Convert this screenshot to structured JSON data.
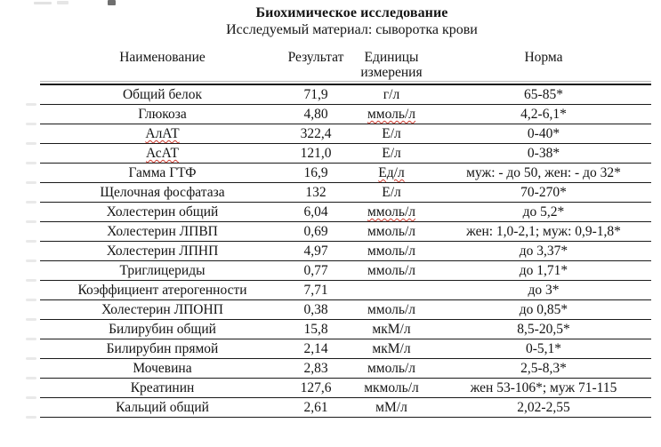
{
  "title": "Биохимическое исследование",
  "subtitle": "Исследуемый материал: сыворотка крови",
  "colors": {
    "spellcheck_underline": "#cc3b2f",
    "rule_dark": "#1a1a1a"
  },
  "table": {
    "columns": [
      "Наименование",
      "Результат",
      "Единицы измерения",
      "Норма"
    ],
    "rows": [
      {
        "name": "Общий белок",
        "result": "71,9",
        "units": "г/л",
        "norm": "65-85*"
      },
      {
        "name": "Глюкоза",
        "result": "4,80",
        "units": "ммоль/л",
        "norm": "4,2-6,1*",
        "units_misspelled": true
      },
      {
        "name": "АлАТ",
        "result": "322,4",
        "units": "Е/л",
        "norm": "0-40*",
        "name_misspelled": true
      },
      {
        "name": "АсАТ",
        "result": "121,0",
        "units": "Е/л",
        "norm": "0-38*",
        "name_misspelled": true
      },
      {
        "name": "Гамма ГТФ",
        "result": "16,9",
        "units": "Ед/л",
        "norm": "муж: - до 50, жен: - до 32*",
        "units_misspelled": true
      },
      {
        "name": "Щелочная фосфатаза",
        "result": "132",
        "units": "Е/л",
        "norm": "70-270*"
      },
      {
        "name": "Холестерин общий",
        "result": "6,04",
        "units": "ммоль/л",
        "norm": "до 5,2*",
        "units_misspelled": true
      },
      {
        "name": "Холестерин ЛПВП",
        "result": "0,69",
        "units": "ммоль/л",
        "norm": "жен: 1,0-2,1; муж: 0,9-1,8*"
      },
      {
        "name": "Холестерин ЛПНП",
        "result": "4,97",
        "units": "ммоль/л",
        "norm": "до 3,37*"
      },
      {
        "name": "Триглицериды",
        "result": "0,77",
        "units": "ммоль/л",
        "norm": "до 1,71*"
      },
      {
        "name": "Коэффициент атерогенности",
        "result": "7,71",
        "units": "",
        "norm": "до 3*"
      },
      {
        "name": "Холестерин ЛПОНП",
        "result": "0,38",
        "units": "ммоль/л",
        "norm": "до 0,85*"
      },
      {
        "name": "Билирубин общий",
        "result": "15,8",
        "units": "мкМ/л",
        "norm": "8,5-20,5*"
      },
      {
        "name": "Билирубин прямой",
        "result": "2,14",
        "units": "мкМ/л",
        "norm": "0-5,1*"
      },
      {
        "name": "Мочевина",
        "result": "2,83",
        "units": "ммоль/л",
        "norm": "2,5-8,3*"
      },
      {
        "name": "Креатинин",
        "result": "127,6",
        "units": "мкмоль/л",
        "norm": "жен 53-106*; муж 71-115"
      },
      {
        "name": "Кальций общий",
        "result": "2,61",
        "units": "мМ/л",
        "norm": "2,02-2,55"
      }
    ]
  }
}
